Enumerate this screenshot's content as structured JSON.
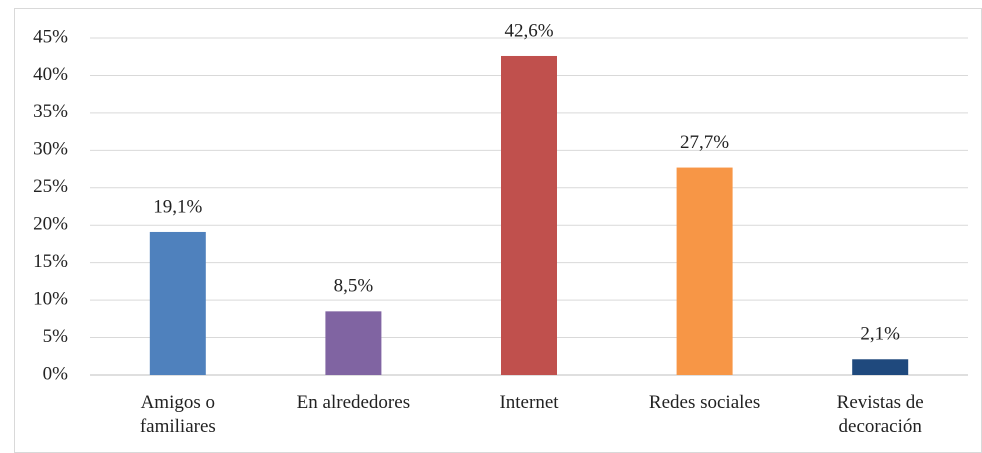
{
  "chart_data": {
    "type": "bar",
    "categories": [
      "Amigos o familiares",
      "En alrededores",
      "Internet",
      "Redes sociales",
      "Revistas de decoración"
    ],
    "values": [
      19.1,
      8.5,
      42.6,
      27.7,
      2.1
    ],
    "value_labels": [
      "19,1%",
      "8,5%",
      "42,6%",
      "27,7%",
      "2,1%"
    ],
    "colors": [
      "#4f81bd",
      "#8064a2",
      "#c0504d",
      "#f79646",
      "#1f497d"
    ],
    "ylim": [
      0,
      45
    ],
    "yticks": [
      {
        "value": 0,
        "label": "0%"
      },
      {
        "value": 5,
        "label": "5%"
      },
      {
        "value": 10,
        "label": "10%"
      },
      {
        "value": 15,
        "label": "15%"
      },
      {
        "value": 20,
        "label": "20%"
      },
      {
        "value": 25,
        "label": "25%"
      },
      {
        "value": 30,
        "label": "30%"
      },
      {
        "value": 35,
        "label": "35%"
      },
      {
        "value": 40,
        "label": "40%"
      },
      {
        "value": 45,
        "label": "45%"
      }
    ],
    "grid": true
  }
}
